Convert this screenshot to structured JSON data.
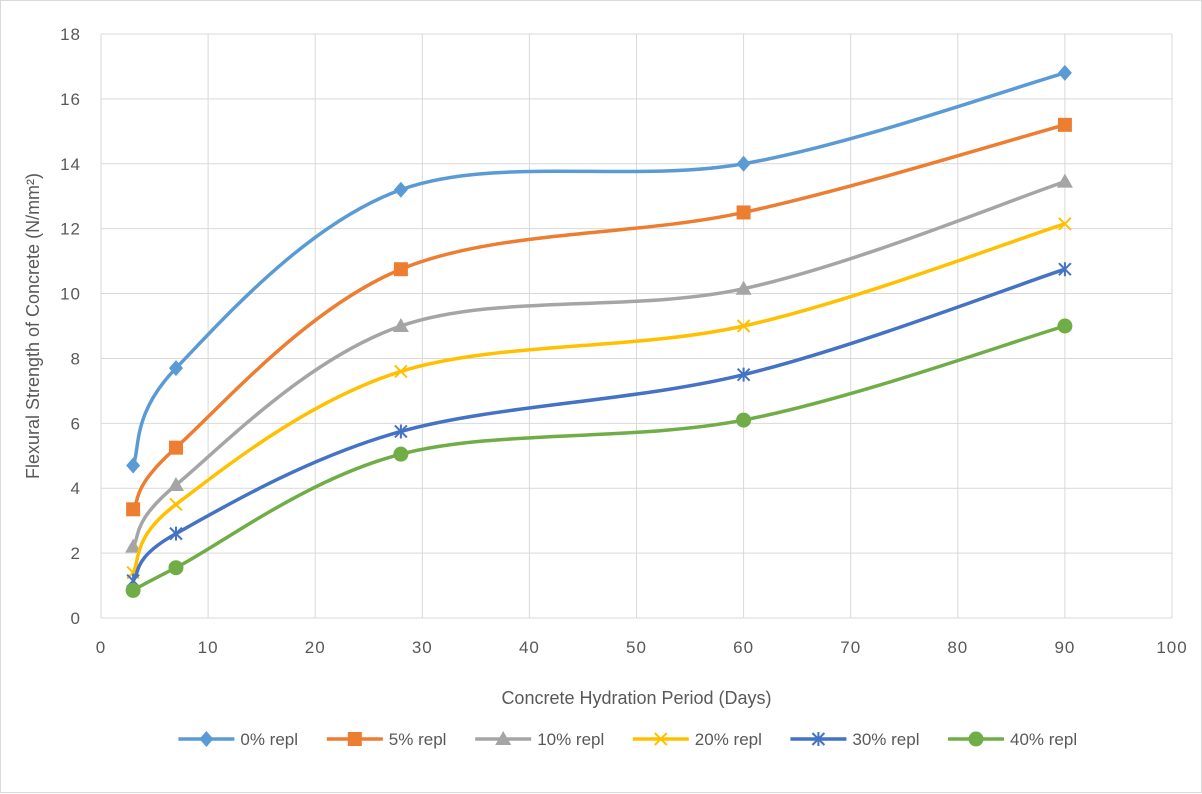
{
  "chart_data": {
    "type": "line",
    "title": "",
    "xlabel": "Concrete Hydration Period (Days)",
    "ylabel": "Flexural Strength of Concrete (N/mm²)",
    "xlim": [
      0,
      100
    ],
    "ylim": [
      0,
      18
    ],
    "x_ticks": [
      "0",
      "10",
      "20",
      "30",
      "40",
      "50",
      "60",
      "70",
      "80",
      "90",
      "100"
    ],
    "y_ticks": [
      "0",
      "2",
      "4",
      "6",
      "8",
      "10",
      "12",
      "14",
      "16",
      "18"
    ],
    "grid": true,
    "smooth": true,
    "legend_position": "bottom",
    "x": [
      3,
      7,
      28,
      60,
      90
    ],
    "series": [
      {
        "name": "0% repl",
        "color": "#5B9BD5",
        "marker": "diamond",
        "values": [
          4.7,
          7.7,
          13.2,
          14.0,
          16.8
        ]
      },
      {
        "name": "5% repl",
        "color": "#ED7D31",
        "marker": "square",
        "values": [
          3.35,
          5.25,
          10.75,
          12.5,
          15.2
        ]
      },
      {
        "name": "10% repl",
        "color": "#A5A5A5",
        "marker": "triangle",
        "values": [
          2.2,
          4.1,
          9.0,
          10.15,
          13.45
        ]
      },
      {
        "name": "20% repl",
        "color": "#FFC000",
        "marker": "x",
        "values": [
          1.4,
          3.5,
          7.6,
          9.0,
          12.15
        ]
      },
      {
        "name": "30% repl",
        "color": "#4472C4",
        "marker": "star",
        "values": [
          1.15,
          2.6,
          5.75,
          7.5,
          10.75
        ]
      },
      {
        "name": "40% repl",
        "color": "#70AD47",
        "marker": "circle",
        "values": [
          0.85,
          1.55,
          5.05,
          6.1,
          9.0
        ]
      }
    ]
  }
}
